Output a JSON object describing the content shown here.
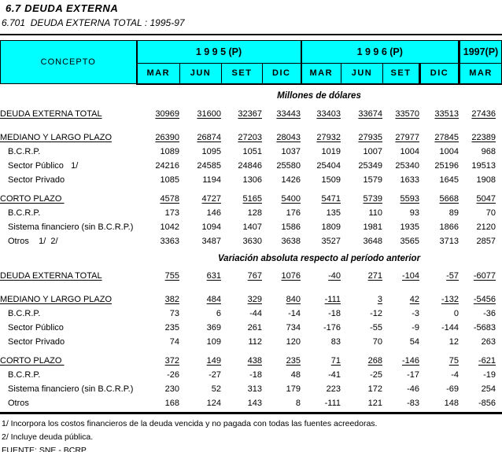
{
  "title": "6.7 DEUDA EXTERNA",
  "subtitle": "6.701  DEUDA EXTERNA TOTAL : 1995-97",
  "colors": {
    "header_bg": "#00ffff",
    "text": "#000000"
  },
  "table": {
    "concept_header": "CONCEPTO",
    "columns": {
      "groups": [
        {
          "year": "1 9 9 5 (P)",
          "months": [
            "MAR",
            "JUN",
            "SET",
            "DIC"
          ]
        },
        {
          "year": "1 9 9 6 (P)",
          "months": [
            "MAR",
            "JUN",
            "SET",
            "DIC"
          ]
        },
        {
          "year": "1997(P)",
          "months": [
            "MAR"
          ]
        }
      ]
    },
    "sections": [
      {
        "heading": "Millones de dólares",
        "blocks": [
          {
            "rows": [
              {
                "label": "DEUDA EXTERNA TOTAL",
                "major": true,
                "values": [
                  "30969",
                  "31600",
                  "32367",
                  "33443",
                  "33403",
                  "33674",
                  "33570",
                  "33513",
                  "27436"
                ]
              }
            ]
          },
          {
            "rows": [
              {
                "label": "MEDIANO Y LARGO PLAZO",
                "major": true,
                "values": [
                  "26390",
                  "26874",
                  "27203",
                  "28043",
                  "27932",
                  "27935",
                  "27977",
                  "27845",
                  "22389"
                ]
              },
              {
                "label": "B.C.R.P.",
                "indent": true,
                "values": [
                  "1089",
                  "1095",
                  "1051",
                  "1037",
                  "1019",
                  "1007",
                  "1004",
                  "1004",
                  "968"
                ]
              },
              {
                "label": "Sector Público   1/",
                "indent": true,
                "values": [
                  "24216",
                  "24585",
                  "24846",
                  "25580",
                  "25404",
                  "25349",
                  "25340",
                  "25196",
                  "19513"
                ]
              },
              {
                "label": "Sector Privado",
                "indent": true,
                "values": [
                  "1085",
                  "1194",
                  "1306",
                  "1426",
                  "1509",
                  "1579",
                  "1633",
                  "1645",
                  "1908"
                ]
              }
            ]
          },
          {
            "rows": [
              {
                "label": "CORTO PLAZO ",
                "major": true,
                "values": [
                  "4578",
                  "4727",
                  "5165",
                  "5400",
                  "5471",
                  "5739",
                  "5593",
                  "5668",
                  "5047"
                ]
              },
              {
                "label": "B.C.R.P.",
                "indent": true,
                "values": [
                  "173",
                  "146",
                  "128",
                  "176",
                  "135",
                  "110",
                  "93",
                  "89",
                  "70"
                ]
              },
              {
                "label": "Sistema financiero (sin B.C.R.P.)",
                "indent": true,
                "values": [
                  "1042",
                  "1094",
                  "1407",
                  "1586",
                  "1809",
                  "1981",
                  "1935",
                  "1866",
                  "2120"
                ]
              },
              {
                "label": "Otros    1/  2/",
                "indent": true,
                "values": [
                  "3363",
                  "3487",
                  "3630",
                  "3638",
                  "3527",
                  "3648",
                  "3565",
                  "3713",
                  "2857"
                ]
              }
            ]
          }
        ]
      },
      {
        "heading": "Variación absoluta respecto al período anterior",
        "blocks": [
          {
            "rows": [
              {
                "label": "DEUDA EXTERNA TOTAL",
                "major": true,
                "values": [
                  "755",
                  "631",
                  "767",
                  "1076",
                  "-40",
                  "271",
                  "-104",
                  "-57",
                  "-6077"
                ]
              }
            ]
          },
          {
            "rows": [
              {
                "label": "MEDIANO Y LARGO PLAZO",
                "major": true,
                "values": [
                  "382",
                  "484",
                  "329",
                  "840",
                  "-111",
                  "3",
                  "42",
                  "-132",
                  "-5456"
                ]
              },
              {
                "label": "B.C.R.P.",
                "indent": true,
                "values": [
                  "73",
                  "6",
                  "-44",
                  "-14",
                  "-18",
                  "-12",
                  "-3",
                  "0",
                  "-36"
                ]
              },
              {
                "label": "Sector Público",
                "indent": true,
                "values": [
                  "235",
                  "369",
                  "261",
                  "734",
                  "-176",
                  "-55",
                  "-9",
                  "-144",
                  "-5683"
                ]
              },
              {
                "label": "Sector Privado",
                "indent": true,
                "values": [
                  "74",
                  "109",
                  "112",
                  "120",
                  "83",
                  "70",
                  "54",
                  "12",
                  "263"
                ]
              }
            ]
          },
          {
            "rows": [
              {
                "label": "CORTO PLAZO ",
                "major": true,
                "values": [
                  "372",
                  "149",
                  "438",
                  "235",
                  "71",
                  "268",
                  "-146",
                  "75",
                  "-621"
                ]
              },
              {
                "label": "B.C.R.P.",
                "indent": true,
                "values": [
                  "-26",
                  "-27",
                  "-18",
                  "48",
                  "-41",
                  "-25",
                  "-17",
                  "-4",
                  "-19"
                ]
              },
              {
                "label": "Sistema financiero (sin B.C.R.P.)",
                "indent": true,
                "values": [
                  "230",
                  "52",
                  "313",
                  "179",
                  "223",
                  "172",
                  "-46",
                  "-69",
                  "254"
                ]
              },
              {
                "label": "Otros",
                "indent": true,
                "values": [
                  "168",
                  "124",
                  "143",
                  "8",
                  "-111",
                  "121",
                  "-83",
                  "148",
                  "-856"
                ]
              }
            ]
          }
        ]
      }
    ]
  },
  "footnotes": [
    "1/ Incorpora los costos financieros de la deuda vencida y no pagada con todas las fuentes acreedoras.",
    "2/ Incluye deuda pública."
  ],
  "source": "FUENTE: SNE - BCRP"
}
